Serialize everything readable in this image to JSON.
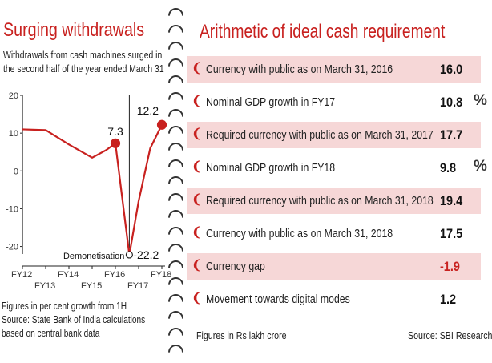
{
  "left_panel": {
    "title": "Surging withdrawals",
    "subtitle_lines": [
      "Withdrawals from cash machines surged in",
      "the second half of the year ended March 31"
    ],
    "footnote_lines": [
      "Figures in per cent growth from 1H",
      "Source: State Bank of India calculations",
      "based on central bank data"
    ]
  },
  "chart_data": {
    "type": "line",
    "categories": [
      "FY12",
      "FY13",
      "FY14",
      "FY15",
      "FY16",
      "FY17",
      "FY18"
    ],
    "x": [
      0,
      1,
      2,
      3,
      3.6,
      4,
      4.6,
      5,
      5.5,
      6
    ],
    "y": [
      11,
      10.8,
      7,
      3.5,
      5.5,
      7.3,
      -22.2,
      -8,
      6,
      12.2
    ],
    "ylim": [
      -22,
      20
    ],
    "yticks": [
      20,
      10,
      0,
      -10,
      -20
    ],
    "highlights": [
      {
        "label": "7.3",
        "x": 4,
        "y": 7.3
      },
      {
        "label": "-22.2",
        "x": 4.6,
        "y": -22.2
      },
      {
        "label": "12.2",
        "x": 6,
        "y": 12.2
      }
    ],
    "annotation": {
      "text": "Demonetisation",
      "x": 4.6
    },
    "line_color": "#c8211f",
    "grid": false
  },
  "right_panel": {
    "title": "Arithmetic of ideal cash requirement",
    "rows": [
      {
        "label": "Currency with public as on March 31, 2016",
        "value": "16.0",
        "unit": ""
      },
      {
        "label": "Nominal GDP growth in FY17",
        "value": "10.8",
        "unit": "%"
      },
      {
        "label": "Required currency with public as on March 31, 2017",
        "value": "17.7",
        "unit": ""
      },
      {
        "label": "Nominal GDP growth in FY18",
        "value": "9.8",
        "unit": "%"
      },
      {
        "label": "Required currency with public as on March 31, 2018",
        "value": "19.4",
        "unit": ""
      },
      {
        "label": "Currency with public as on March 31, 2018",
        "value": "17.5",
        "unit": ""
      },
      {
        "label": "Currency gap",
        "value": "-1.9",
        "unit": ""
      },
      {
        "label": "Movement towards digital modes",
        "value": "1.2",
        "unit": ""
      }
    ],
    "footer_left": "Figures in Rs lakh crore",
    "footer_right": "Source: SBI Research"
  },
  "colors": {
    "accent": "#c8211f",
    "row_shade": "#f6d7d7"
  }
}
